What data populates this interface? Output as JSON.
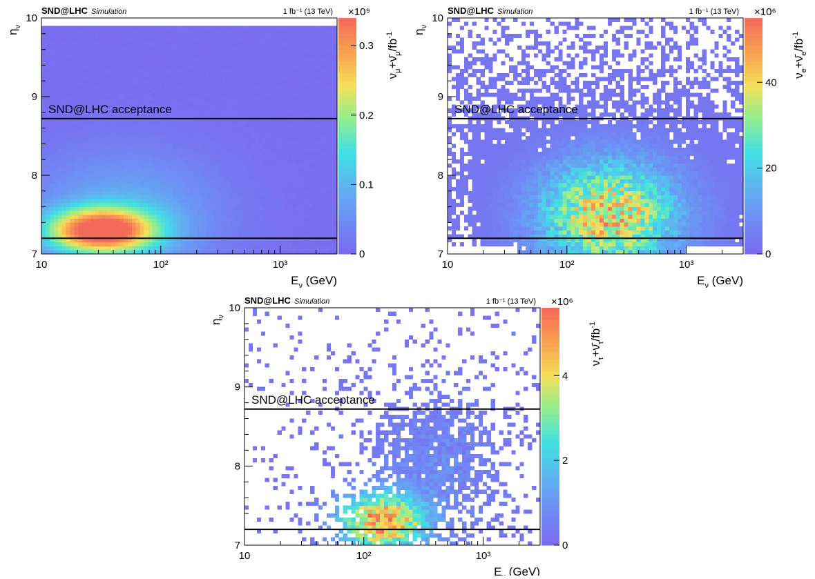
{
  "chart_data": [
    {
      "type": "heatmap",
      "id": "numu",
      "brand": "SND@LHC",
      "brand_suffix": "Simulation",
      "lumi": "1 fb⁻¹ (13 TeV)",
      "xlabel": "E_ν (GeV)",
      "ylabel": "η_ν",
      "zlabel": "ν_μ+ν̄_μ/fb⁻¹",
      "z_exponent": "×10⁹",
      "xscale": "log",
      "xlim": [
        10,
        3000
      ],
      "ylim": [
        7,
        10
      ],
      "zlim": [
        0,
        0.34
      ],
      "xticks": [
        10,
        100,
        1000
      ],
      "xtick_labels": [
        "10",
        "10²",
        "10³"
      ],
      "yticks": [
        7,
        8,
        9,
        10
      ],
      "ytick_labels": [
        "7",
        "8",
        "9",
        "10"
      ],
      "zticks": [
        0,
        0.1,
        0.2,
        0.3
      ],
      "ztick_labels": [
        "0",
        "0.1",
        "0.2",
        "0.3"
      ],
      "acceptance_label": "SND@LHC acceptance",
      "acceptance_lines": [
        7.2,
        8.72
      ],
      "peak": {
        "logE": 1.5,
        "eta": 7.3,
        "value": 0.34
      },
      "distribution": "dense"
    },
    {
      "type": "heatmap",
      "id": "nue",
      "brand": "SND@LHC",
      "brand_suffix": "Simulation",
      "lumi": "1 fb⁻¹ (13 TeV)",
      "xlabel": "E_ν (GeV)",
      "ylabel": "η_ν",
      "zlabel": "ν_e+ν̄_e/fb⁻¹",
      "z_exponent": "×10⁶",
      "xscale": "log",
      "xlim": [
        10,
        3000
      ],
      "ylim": [
        7,
        10
      ],
      "zlim": [
        0,
        55
      ],
      "xticks": [
        10,
        100,
        1000
      ],
      "xtick_labels": [
        "10",
        "10²",
        "10³"
      ],
      "yticks": [
        7,
        8,
        9,
        10
      ],
      "ytick_labels": [
        "7",
        "8",
        "9",
        "10"
      ],
      "zticks": [
        0,
        20,
        40
      ],
      "ztick_labels": [
        "0",
        "20",
        "40"
      ],
      "acceptance_label": "SND@LHC acceptance",
      "acceptance_lines": [
        7.2,
        8.72
      ],
      "peak": {
        "logE": 2.5,
        "eta": 7.35,
        "value": 55
      },
      "distribution": "sparse"
    },
    {
      "type": "heatmap",
      "id": "nutau",
      "brand": "SND@LHC",
      "brand_suffix": "Simulation",
      "lumi": "1 fb⁻¹ (13 TeV)",
      "xlabel": "E_ν (GeV)",
      "ylabel": "η_ν",
      "zlabel": "ν_τ+ν̄_τ/fb⁻¹",
      "z_exponent": "×10⁶",
      "xscale": "log",
      "xlim": [
        10,
        3000
      ],
      "ylim": [
        7,
        10
      ],
      "zlim": [
        0,
        5.6
      ],
      "xticks": [
        10,
        100,
        1000
      ],
      "xtick_labels": [
        "10",
        "10²",
        "10³"
      ],
      "yticks": [
        7,
        8,
        9,
        10
      ],
      "ytick_labels": [
        "7",
        "8",
        "9",
        "10"
      ],
      "zticks": [
        0,
        2,
        4
      ],
      "ztick_labels": [
        "0",
        "2",
        "4"
      ],
      "acceptance_label": "SND@LHC acceptance",
      "acceptance_lines": [
        7.2,
        8.72
      ],
      "peak": {
        "logE": 2.1,
        "eta": 7.25,
        "value": 5.6
      },
      "distribution": "very-sparse"
    }
  ],
  "colors": {
    "palette": [
      "#7b68ee",
      "#6f8cf5",
      "#5fb3f0",
      "#3fe0e6",
      "#90ee90",
      "#f5e05a",
      "#f8a050",
      "#f36a5a"
    ],
    "line": "#000000"
  }
}
